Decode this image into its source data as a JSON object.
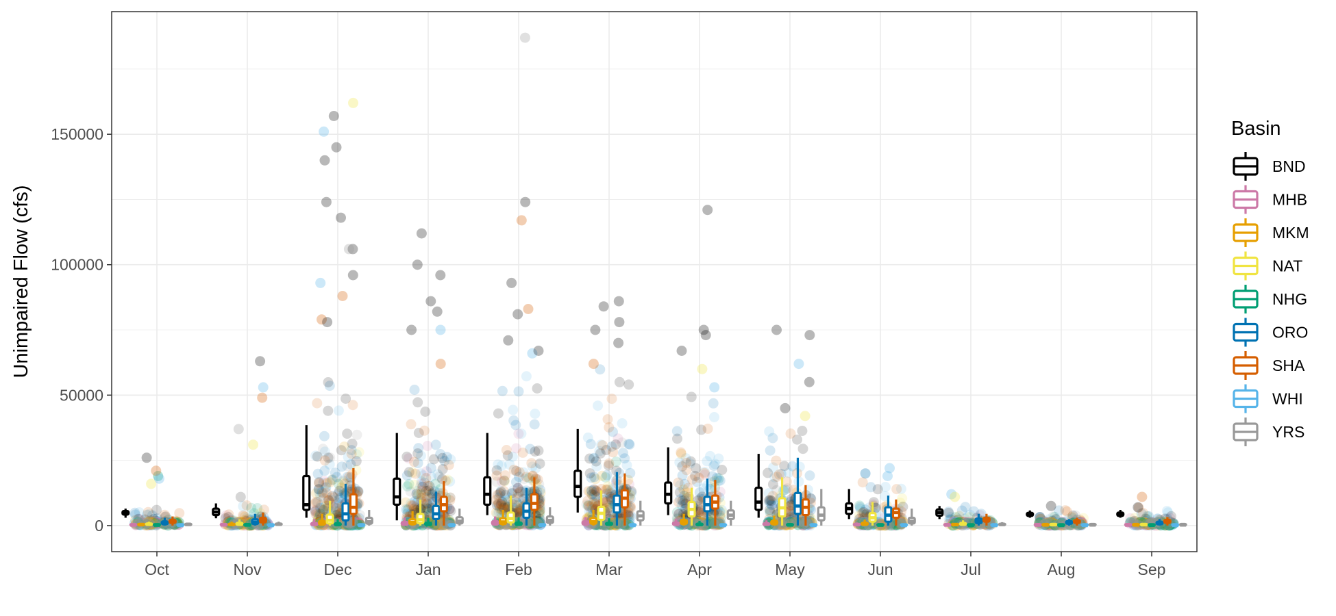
{
  "chart_data": {
    "type": "boxplot",
    "ylabel": "Unimpaired Flow (cfs)",
    "xlabel": "",
    "ylim": [
      -10000,
      197000
    ],
    "yticks": [
      0,
      50000,
      100000,
      150000
    ],
    "grid": true,
    "legend": {
      "title": "Basin",
      "position": "right"
    },
    "categories": [
      "Oct",
      "Nov",
      "Dec",
      "Jan",
      "Feb",
      "Mar",
      "Apr",
      "May",
      "Jun",
      "Jul",
      "Aug",
      "Sep"
    ],
    "series": [
      {
        "name": "BND",
        "color": "#000000",
        "box": [
          [
            3000,
            4200,
            5000,
            5600,
            6500
          ],
          [
            2800,
            4000,
            5200,
            6500,
            8500
          ],
          [
            3000,
            6000,
            8000,
            19000,
            38500
          ],
          [
            2000,
            8000,
            11000,
            18000,
            35500
          ],
          [
            4000,
            8000,
            12000,
            18500,
            35500
          ],
          [
            5000,
            11000,
            15000,
            21000,
            37000
          ],
          [
            4000,
            8500,
            12000,
            16500,
            30000
          ],
          [
            3000,
            6000,
            9000,
            14500,
            27500
          ],
          [
            2500,
            4500,
            6500,
            8500,
            14000
          ],
          [
            2500,
            3800,
            5000,
            6200,
            7500
          ],
          [
            3000,
            3700,
            4300,
            4900,
            5800
          ],
          [
            3000,
            3700,
            4400,
            5000,
            6000
          ]
        ]
      },
      {
        "name": "MHB",
        "color": "#cc79a7",
        "box": [
          [
            0,
            80,
            150,
            250,
            500
          ],
          [
            0,
            100,
            200,
            350,
            700
          ],
          [
            0,
            200,
            500,
            1000,
            2500
          ],
          [
            0,
            300,
            700,
            1400,
            3000
          ],
          [
            0,
            400,
            900,
            1700,
            3500
          ],
          [
            0,
            400,
            900,
            1600,
            3200
          ],
          [
            0,
            300,
            700,
            1200,
            2500
          ],
          [
            0,
            250,
            550,
            900,
            2000
          ],
          [
            0,
            150,
            300,
            550,
            1200
          ],
          [
            0,
            80,
            150,
            250,
            500
          ],
          [
            0,
            60,
            120,
            200,
            400
          ],
          [
            0,
            60,
            120,
            200,
            400
          ]
        ]
      },
      {
        "name": "MKM",
        "color": "#e69f00",
        "box": [
          [
            0,
            150,
            300,
            500,
            1000
          ],
          [
            0,
            200,
            400,
            700,
            1500
          ],
          [
            0,
            400,
            900,
            1800,
            4500
          ],
          [
            0,
            500,
            1200,
            2400,
            5500
          ],
          [
            0,
            600,
            1400,
            2800,
            6000
          ],
          [
            0,
            700,
            1500,
            2900,
            6000
          ],
          [
            0,
            600,
            1200,
            2200,
            4500
          ],
          [
            0,
            500,
            1000,
            1800,
            3800
          ],
          [
            0,
            300,
            600,
            1100,
            2300
          ],
          [
            0,
            150,
            300,
            500,
            1000
          ],
          [
            0,
            100,
            200,
            350,
            700
          ],
          [
            0,
            100,
            200,
            350,
            700
          ]
        ]
      },
      {
        "name": "NAT",
        "color": "#f0e442",
        "box": [
          [
            0,
            300,
            500,
            800,
            1500
          ],
          [
            0,
            300,
            600,
            1100,
            2400
          ],
          [
            0,
            800,
            2000,
            4200,
            9500
          ],
          [
            0,
            900,
            2200,
            4500,
            10000
          ],
          [
            0,
            1200,
            2700,
            5000,
            11500
          ],
          [
            0,
            2200,
            4700,
            7200,
            13500
          ],
          [
            0,
            3500,
            6200,
            9000,
            14500
          ],
          [
            0,
            3500,
            6800,
            10500,
            18500
          ],
          [
            0,
            1500,
            3000,
            4800,
            9000
          ],
          [
            0,
            300,
            600,
            1000,
            2000
          ],
          [
            0,
            150,
            300,
            500,
            1000
          ],
          [
            0,
            150,
            300,
            500,
            1000
          ]
        ]
      },
      {
        "name": "NHG",
        "color": "#009e73",
        "box": [
          [
            0,
            50,
            100,
            180,
            350
          ],
          [
            0,
            60,
            150,
            300,
            700
          ],
          [
            0,
            150,
            400,
            900,
            2500
          ],
          [
            0,
            200,
            500,
            1100,
            3000
          ],
          [
            0,
            250,
            600,
            1200,
            3200
          ],
          [
            0,
            250,
            600,
            1100,
            2800
          ],
          [
            0,
            150,
            400,
            750,
            1800
          ],
          [
            0,
            80,
            200,
            400,
            1000
          ],
          [
            0,
            40,
            100,
            200,
            500
          ],
          [
            0,
            20,
            50,
            100,
            250
          ],
          [
            0,
            10,
            30,
            60,
            150
          ],
          [
            0,
            15,
            40,
            80,
            180
          ]
        ]
      },
      {
        "name": "ORO",
        "color": "#0072b2",
        "box": [
          [
            0,
            500,
            1000,
            1600,
            3000
          ],
          [
            0,
            600,
            1300,
            2400,
            4500
          ],
          [
            0,
            2000,
            4500,
            8500,
            16000
          ],
          [
            0,
            2500,
            4500,
            7500,
            13000
          ],
          [
            0,
            3000,
            5500,
            8500,
            14500
          ],
          [
            0,
            5000,
            8000,
            11500,
            20500
          ],
          [
            0,
            5500,
            8000,
            11000,
            18000
          ],
          [
            0,
            4500,
            7500,
            12500,
            26000
          ],
          [
            0,
            1500,
            4000,
            7000,
            11500
          ],
          [
            0,
            900,
            1700,
            2700,
            4500
          ],
          [
            0,
            700,
            1200,
            1700,
            2500
          ],
          [
            0,
            500,
            1000,
            1500,
            2500
          ]
        ]
      },
      {
        "name": "SHA",
        "color": "#d55e00",
        "box": [
          [
            0,
            1000,
            1500,
            2200,
            3500
          ],
          [
            0,
            1200,
            2000,
            3000,
            5000
          ],
          [
            0,
            4500,
            7000,
            12000,
            22000
          ],
          [
            0,
            5500,
            8000,
            11000,
            17000
          ],
          [
            0,
            6000,
            8500,
            12000,
            18500
          ],
          [
            0,
            7000,
            10500,
            13500,
            20000
          ],
          [
            0,
            6500,
            9000,
            11500,
            17500
          ],
          [
            0,
            4000,
            7000,
            10000,
            15500
          ],
          [
            0,
            3000,
            5000,
            6500,
            10000
          ],
          [
            0,
            1500,
            2300,
            3000,
            4500
          ],
          [
            0,
            1000,
            1500,
            2100,
            3000
          ],
          [
            0,
            1000,
            1600,
            2200,
            3200
          ]
        ]
      },
      {
        "name": "WHI",
        "color": "#56b4e9",
        "box": [
          [
            0,
            0,
            0,
            0,
            0
          ],
          [
            0,
            0,
            0,
            0,
            0
          ],
          [
            0,
            0,
            0,
            0,
            0
          ],
          [
            0,
            0,
            0,
            0,
            0
          ],
          [
            0,
            0,
            0,
            0,
            0
          ],
          [
            0,
            0,
            0,
            0,
            0
          ],
          [
            0,
            0,
            0,
            0,
            0
          ],
          [
            0,
            0,
            0,
            0,
            0
          ],
          [
            0,
            0,
            0,
            0,
            0
          ],
          [
            0,
            0,
            0,
            0,
            0
          ],
          [
            0,
            0,
            0,
            0,
            0
          ],
          [
            0,
            0,
            0,
            0,
            0
          ]
        ]
      },
      {
        "name": "YRS",
        "color": "#999999",
        "box": [
          [
            0,
            200,
            400,
            600,
            1000
          ],
          [
            0,
            250,
            500,
            800,
            1500
          ],
          [
            0,
            700,
            1500,
            3000,
            6000
          ],
          [
            0,
            800,
            1700,
            3200,
            6500
          ],
          [
            0,
            1000,
            2000,
            3500,
            7000
          ],
          [
            0,
            2000,
            3700,
            5500,
            9500
          ],
          [
            0,
            2500,
            4000,
            5800,
            9500
          ],
          [
            0,
            2000,
            4000,
            7000,
            14000
          ],
          [
            0,
            800,
            1700,
            3000,
            6500
          ],
          [
            0,
            200,
            400,
            700,
            1300
          ],
          [
            0,
            100,
            200,
            350,
            600
          ],
          [
            0,
            100,
            200,
            350,
            600
          ]
        ]
      }
    ],
    "outliers": [
      {
        "m": 0,
        "s": "BND",
        "y": 26000
      },
      {
        "m": 0,
        "s": "NHG",
        "y": 19000
      },
      {
        "m": 0,
        "s": "NAT",
        "y": 16000
      },
      {
        "m": 0,
        "s": "SHA",
        "y": 21000
      },
      {
        "m": 0,
        "s": "WHI",
        "y": 18000
      },
      {
        "m": 1,
        "s": "BND",
        "y": 63000
      },
      {
        "m": 1,
        "s": "YRS",
        "y": 37000
      },
      {
        "m": 1,
        "s": "NAT",
        "y": 31000
      },
      {
        "m": 1,
        "s": "WHI",
        "y": 53000
      },
      {
        "m": 1,
        "s": "SHA",
        "y": 49000
      },
      {
        "m": 2,
        "s": "NAT",
        "y": 162000
      },
      {
        "m": 2,
        "s": "BND",
        "y": 157000
      },
      {
        "m": 2,
        "s": "WHI",
        "y": 151000
      },
      {
        "m": 2,
        "s": "BND",
        "y": 145000
      },
      {
        "m": 2,
        "s": "BND",
        "y": 140000
      },
      {
        "m": 2,
        "s": "BND",
        "y": 124000
      },
      {
        "m": 2,
        "s": "BND",
        "y": 118000
      },
      {
        "m": 2,
        "s": "BND",
        "y": 106000
      },
      {
        "m": 2,
        "s": "YRS",
        "y": 106000
      },
      {
        "m": 2,
        "s": "WHI",
        "y": 93000
      },
      {
        "m": 2,
        "s": "SHA",
        "y": 88000
      },
      {
        "m": 2,
        "s": "BND",
        "y": 96000
      },
      {
        "m": 2,
        "s": "SHA",
        "y": 79000
      },
      {
        "m": 2,
        "s": "BND",
        "y": 78000
      },
      {
        "m": 3,
        "s": "BND",
        "y": 112000
      },
      {
        "m": 3,
        "s": "BND",
        "y": 100000
      },
      {
        "m": 3,
        "s": "BND",
        "y": 96000
      },
      {
        "m": 3,
        "s": "BND",
        "y": 86000
      },
      {
        "m": 3,
        "s": "BND",
        "y": 82000
      },
      {
        "m": 3,
        "s": "WHI",
        "y": 75000
      },
      {
        "m": 3,
        "s": "BND",
        "y": 75000
      },
      {
        "m": 3,
        "s": "SHA",
        "y": 62000
      },
      {
        "m": 4,
        "s": "YRS",
        "y": 187000
      },
      {
        "m": 4,
        "s": "BND",
        "y": 124000
      },
      {
        "m": 4,
        "s": "SHA",
        "y": 117000
      },
      {
        "m": 4,
        "s": "BND",
        "y": 93000
      },
      {
        "m": 4,
        "s": "SHA",
        "y": 83000
      },
      {
        "m": 4,
        "s": "BND",
        "y": 81000
      },
      {
        "m": 4,
        "s": "BND",
        "y": 71000
      },
      {
        "m": 4,
        "s": "WHI",
        "y": 66000
      },
      {
        "m": 4,
        "s": "BND",
        "y": 67000
      },
      {
        "m": 5,
        "s": "BND",
        "y": 86000
      },
      {
        "m": 5,
        "s": "BND",
        "y": 84000
      },
      {
        "m": 5,
        "s": "BND",
        "y": 78000
      },
      {
        "m": 5,
        "s": "BND",
        "y": 75000
      },
      {
        "m": 5,
        "s": "BND",
        "y": 70000
      },
      {
        "m": 5,
        "s": "SHA",
        "y": 62000
      },
      {
        "m": 6,
        "s": "BND",
        "y": 121000
      },
      {
        "m": 6,
        "s": "BND",
        "y": 75000
      },
      {
        "m": 6,
        "s": "BND",
        "y": 73000
      },
      {
        "m": 6,
        "s": "BND",
        "y": 67000
      },
      {
        "m": 6,
        "s": "NAT",
        "y": 60000
      },
      {
        "m": 6,
        "s": "WHI",
        "y": 53000
      },
      {
        "m": 7,
        "s": "BND",
        "y": 75000
      },
      {
        "m": 7,
        "s": "BND",
        "y": 73000
      },
      {
        "m": 7,
        "s": "WHI",
        "y": 62000
      },
      {
        "m": 7,
        "s": "BND",
        "y": 55000
      },
      {
        "m": 7,
        "s": "BND",
        "y": 45000
      },
      {
        "m": 7,
        "s": "NAT",
        "y": 42000
      },
      {
        "m": 8,
        "s": "WHI",
        "y": 22000
      },
      {
        "m": 8,
        "s": "ORO",
        "y": 20000
      },
      {
        "m": 8,
        "s": "WHI",
        "y": 19000
      },
      {
        "m": 9,
        "s": "WHI",
        "y": 12000
      },
      {
        "m": 9,
        "s": "NAT",
        "y": 11000
      },
      {
        "m": 10,
        "s": "BND",
        "y": 7500
      },
      {
        "m": 11,
        "s": "SHA",
        "y": 11000
      },
      {
        "m": 11,
        "s": "BND",
        "y": 7000
      }
    ],
    "clouds": [
      {
        "m": 0,
        "lo": 0,
        "hi": 8000,
        "mid": 6000
      },
      {
        "m": 1,
        "lo": 0,
        "hi": 14000,
        "mid": 8000
      },
      {
        "m": 2,
        "lo": 0,
        "hi": 60000,
        "mid": 30000
      },
      {
        "m": 3,
        "lo": 0,
        "hi": 55000,
        "mid": 28000
      },
      {
        "m": 4,
        "lo": 0,
        "hi": 60000,
        "mid": 30000
      },
      {
        "m": 5,
        "lo": 0,
        "hi": 62000,
        "mid": 32000
      },
      {
        "m": 6,
        "lo": 0,
        "hi": 50000,
        "mid": 26000
      },
      {
        "m": 7,
        "lo": 0,
        "hi": 40000,
        "mid": 24000
      },
      {
        "m": 8,
        "lo": 0,
        "hi": 21000,
        "mid": 16000
      },
      {
        "m": 9,
        "lo": 0,
        "hi": 11000,
        "mid": 7500
      },
      {
        "m": 10,
        "lo": 0,
        "hi": 7000,
        "mid": 6000
      },
      {
        "m": 11,
        "lo": 0,
        "hi": 7000,
        "mid": 6000
      }
    ]
  }
}
